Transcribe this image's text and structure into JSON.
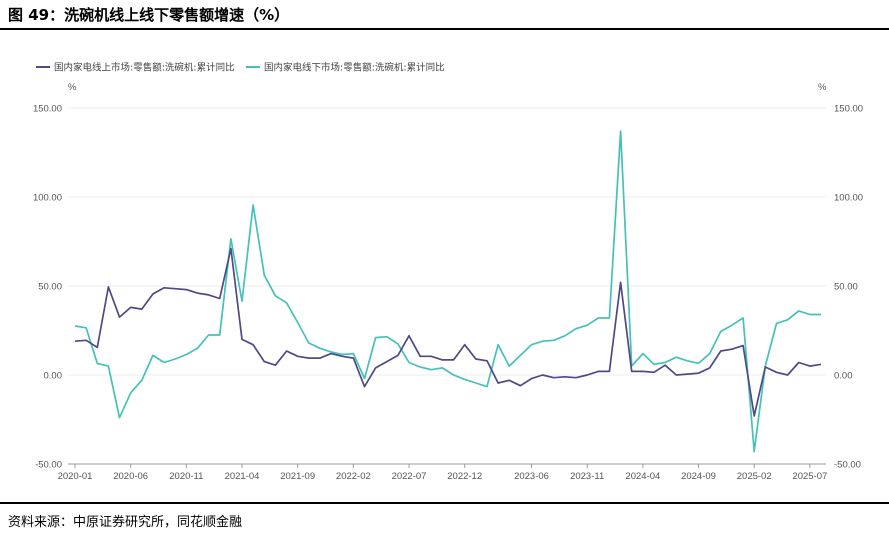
{
  "header": {
    "title": "图 49：洗碗机线上线下零售额增速（%）"
  },
  "footer": {
    "source": "资料来源：中原证券研究所，同花顺金融"
  },
  "colors": {
    "online": "#4e4a86",
    "offline": "#45c1b8"
  },
  "chart_data": {
    "type": "line",
    "left_unit": "%",
    "right_unit": "%",
    "ylim": [
      -50,
      150
    ],
    "yticks": [
      "150.00",
      "100.00",
      "50.00",
      "0.00",
      "-50.00"
    ],
    "ytick_values": [
      150,
      100,
      50,
      0,
      -50
    ],
    "x_ticks": [
      "2020-01",
      "2020-06",
      "2020-11",
      "2021-04",
      "2021-09",
      "2022-02",
      "2022-07",
      "2022-12",
      "2023-06",
      "2023-11",
      "2024-04",
      "2024-09",
      "2025-02",
      "2025-07"
    ],
    "x_tick_index": [
      0,
      5,
      10,
      15,
      20,
      25,
      30,
      35,
      41,
      46,
      51,
      56,
      61,
      66
    ],
    "grid": "horizontal",
    "legend_position": "top-left",
    "series": [
      {
        "name": "国内家电线上市场:零售额:洗碗机:累计同比",
        "values": [
          19,
          19.5,
          15.5,
          49.5,
          32.5,
          38,
          37,
          45.5,
          49,
          48.5,
          48,
          46,
          45,
          43,
          71,
          20,
          17,
          7.5,
          5.5,
          13.5,
          10.5,
          9.5,
          9.5,
          12,
          10.5,
          9.5,
          -6.5,
          4,
          7.5,
          11,
          22,
          10.5,
          10.5,
          8.5,
          8.5,
          17,
          9,
          8,
          -4.5,
          -3,
          -6,
          -2,
          0,
          -1.5,
          -1,
          -1.5,
          0,
          2,
          2,
          52,
          2,
          2,
          1.5,
          5.5,
          0,
          0.5,
          1,
          4,
          13.5,
          14.5,
          16.5,
          -23,
          4.5,
          1.5,
          0,
          7,
          5,
          6
        ]
      },
      {
        "name": "国内家电线下市场:零售额:洗碗机:累计同比",
        "values": [
          27.5,
          26.5,
          6.5,
          5,
          -24,
          -10,
          -3,
          11,
          7,
          9,
          11.5,
          15,
          22.5,
          22.5,
          76.5,
          41.5,
          95.5,
          56,
          44.5,
          40.5,
          29.5,
          18,
          15,
          13,
          11.5,
          12,
          -2,
          21,
          21.5,
          17.5,
          7,
          4.5,
          3,
          4,
          0,
          -2.5,
          -4.5,
          -6.5,
          17,
          5,
          11,
          17,
          19,
          19.5,
          22,
          26,
          28,
          32,
          32,
          137,
          5,
          12,
          6,
          7,
          10,
          8,
          6.5,
          12,
          24.5,
          28,
          32,
          -43,
          5,
          29,
          31,
          36,
          34,
          34
        ]
      }
    ]
  }
}
